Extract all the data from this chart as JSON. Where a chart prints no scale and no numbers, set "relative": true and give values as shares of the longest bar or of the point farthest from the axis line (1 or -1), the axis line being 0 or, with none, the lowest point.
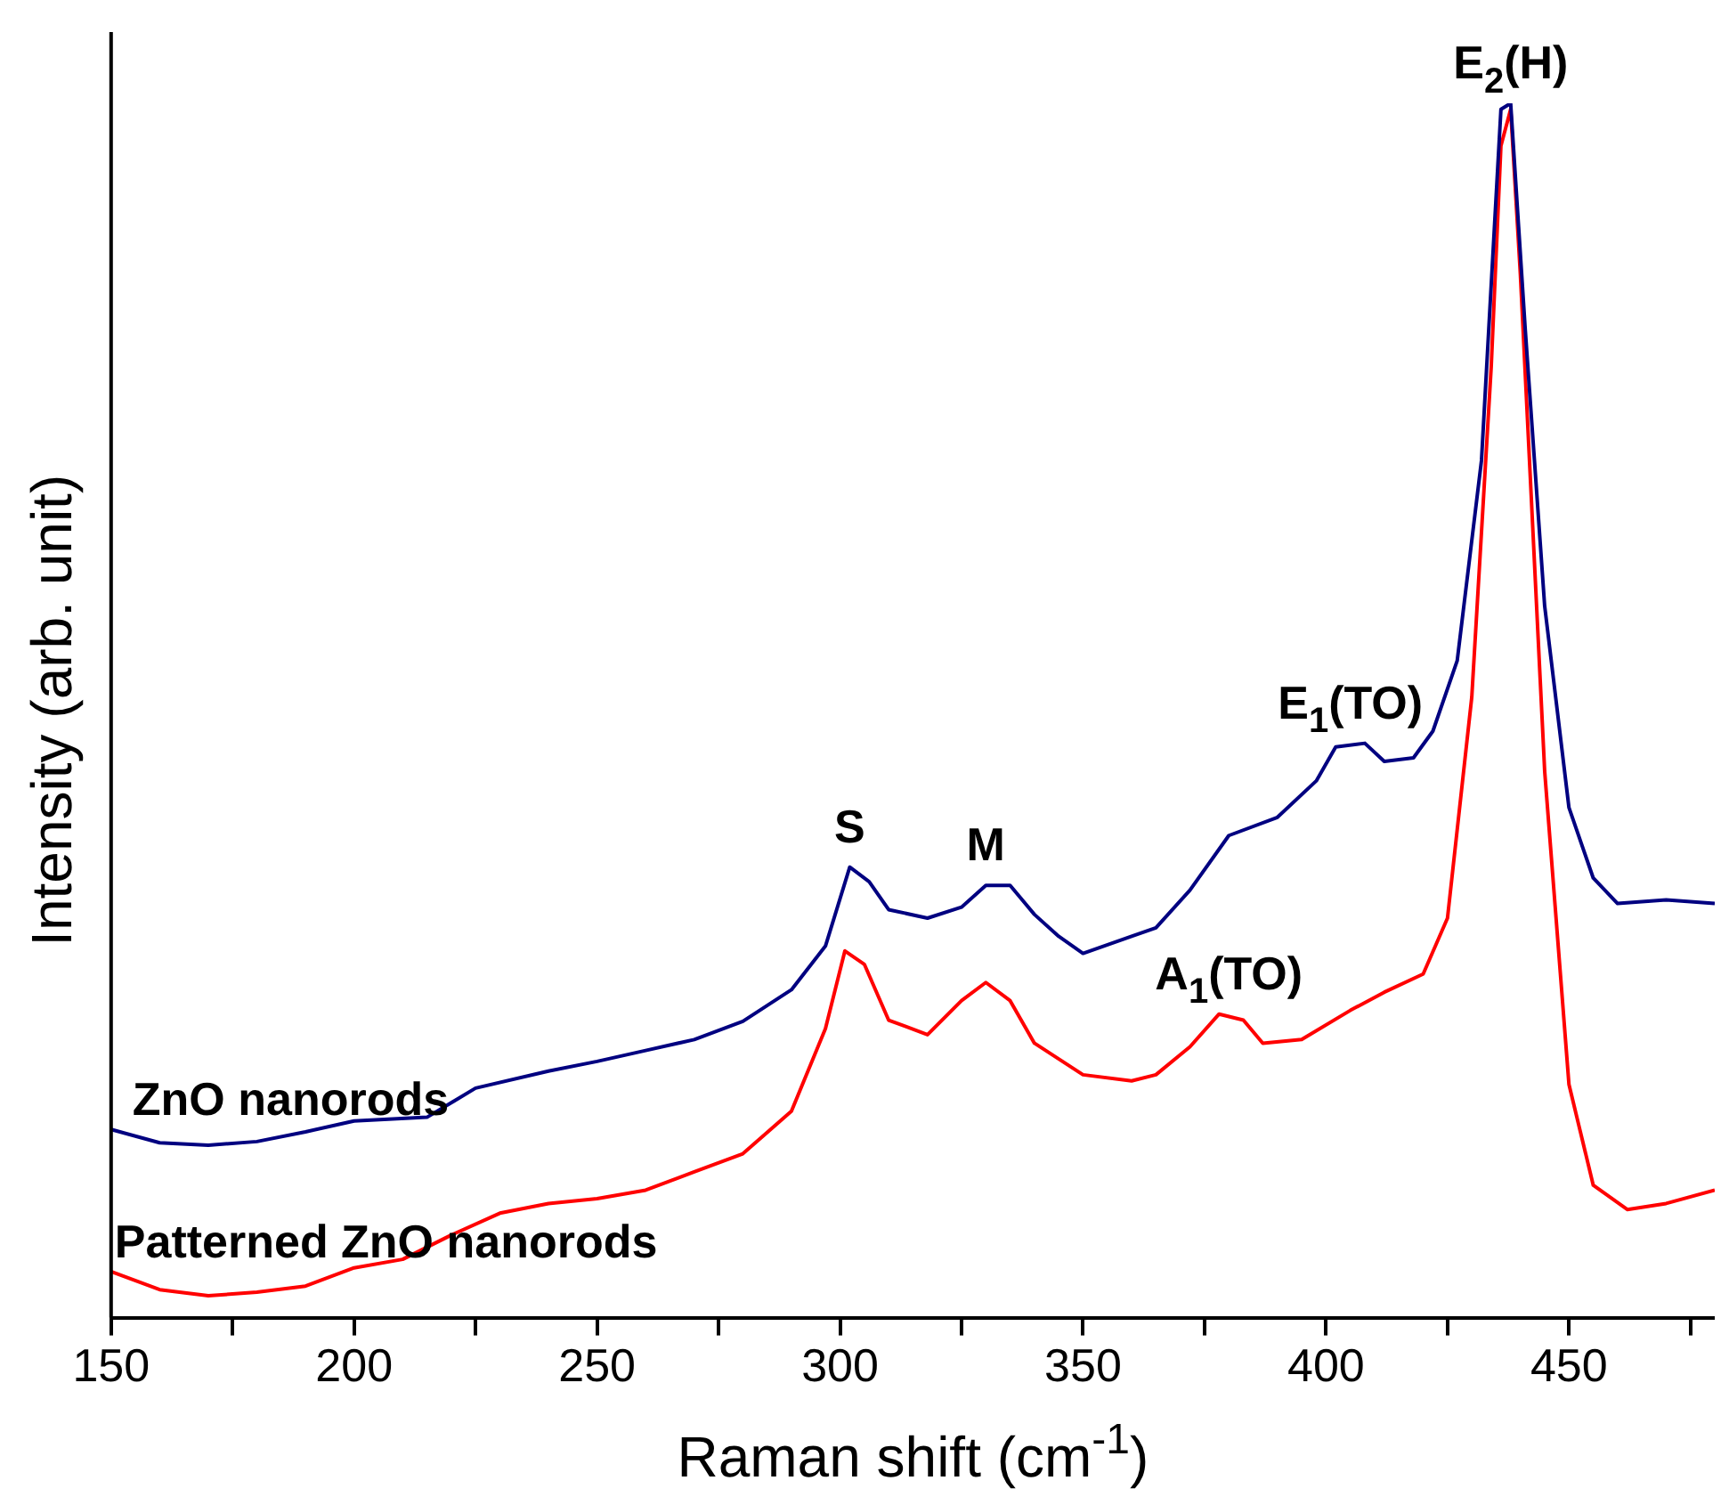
{
  "chart_data": {
    "type": "line",
    "xlabel": "Raman shift (cm$^{-1}$)",
    "ylabel": "Intensity (arb. unit)",
    "relative": true,
    "xlim": [
      150,
      480
    ],
    "xticks": [
      150,
      {
        "value": 175,
        "label": null
      },
      200,
      {
        "value": 225,
        "label": null
      },
      250,
      {
        "value": 275,
        "label": null
      },
      300,
      {
        "value": 325,
        "label": null
      },
      350,
      {
        "value": 375,
        "label": null
      },
      400,
      {
        "value": 425,
        "label": null
      },
      450,
      {
        "value": 475,
        "label": null
      }
    ],
    "grid": false,
    "legend": false,
    "marker": "none",
    "line_style": "solid",
    "annotations": [
      {
        "text": "S",
        "x": 302,
        "y": 0.371
      },
      {
        "text": "M",
        "x": 330,
        "y": 0.356
      },
      {
        "text": "E$_{1}$(TO)",
        "x": 405,
        "y": 0.473
      },
      {
        "text": "A$_{1}$(TO)",
        "x": 380,
        "y": 0.25
      },
      {
        "text": "E$_{2}$(H)",
        "x": 438,
        "y": 1
      }
    ],
    "series": [
      {
        "name": "ZnO nanorods",
        "color": "#000080",
        "x": [
          150,
          160,
          170,
          180,
          190,
          200,
          215,
          225,
          240,
          250,
          260,
          270,
          280,
          290,
          297,
          302,
          306,
          310,
          318,
          325,
          330,
          335,
          340,
          345,
          350,
          360,
          365,
          372,
          380,
          390,
          398,
          402,
          408,
          412,
          418,
          422,
          427,
          432,
          436,
          438,
          441,
          445,
          450,
          455,
          460,
          470,
          480
        ],
        "values": [
          0.155,
          0.144,
          0.142,
          0.145,
          0.153,
          0.162,
          0.165,
          0.189,
          0.203,
          0.211,
          0.22,
          0.229,
          0.244,
          0.27,
          0.306,
          0.371,
          0.359,
          0.336,
          0.329,
          0.338,
          0.356,
          0.356,
          0.332,
          0.314,
          0.3,
          0.314,
          0.321,
          0.352,
          0.397,
          0.412,
          0.442,
          0.47,
          0.473,
          0.458,
          0.461,
          0.483,
          0.541,
          0.706,
          0.995,
          1,
          0.814,
          0.586,
          0.42,
          0.362,
          0.341,
          0.344,
          0.341
        ]
      },
      {
        "name": "Patterned ZnO nanorods",
        "color": "#ff0000",
        "x": [
          150,
          160,
          170,
          180,
          190,
          200,
          210,
          220,
          230,
          240,
          250,
          260,
          270,
          280,
          290,
          297,
          301,
          305,
          310,
          318,
          325,
          330,
          335,
          340,
          350,
          360,
          365,
          372,
          378,
          383,
          387,
          395,
          405,
          412,
          420,
          425,
          430,
          434,
          436,
          438,
          440,
          445,
          450,
          455,
          462,
          470,
          480
        ],
        "values": [
          0.038,
          0.023,
          0.018,
          0.021,
          0.026,
          0.041,
          0.048,
          0.068,
          0.086,
          0.094,
          0.098,
          0.105,
          0.12,
          0.135,
          0.17,
          0.238,
          0.302,
          0.291,
          0.245,
          0.233,
          0.261,
          0.276,
          0.261,
          0.226,
          0.2,
          0.195,
          0.2,
          0.223,
          0.25,
          0.245,
          0.226,
          0.229,
          0.253,
          0.268,
          0.283,
          0.329,
          0.511,
          0.783,
          0.965,
          0.995,
          0.859,
          0.45,
          0.192,
          0.109,
          0.089,
          0.094,
          0.105
        ]
      }
    ]
  }
}
